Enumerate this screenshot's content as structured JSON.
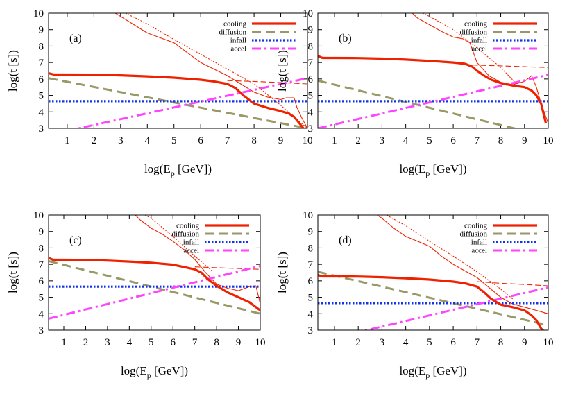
{
  "figure": {
    "ylabel": "log(t [s])",
    "xlabel_main": "log(E",
    "xlabel_sub": "p",
    "xlabel_tail": " [GeV])"
  },
  "colors": {
    "cooling": "#ee2200",
    "diffusion": "#999966",
    "infall": "#1133ee",
    "accel": "#ff44ff"
  },
  "chart_data": [
    {
      "type": "line",
      "panel_label": "(a)",
      "xlim": [
        0.3,
        10
      ],
      "ylim": [
        3,
        10
      ],
      "xticks": [
        "1",
        "2",
        "3",
        "4",
        "5",
        "6",
        "7",
        "8",
        "9",
        "10"
      ],
      "yticks": [
        "3",
        "4",
        "5",
        "6",
        "7",
        "8",
        "9",
        "10"
      ],
      "legend": [
        "cooling",
        "diffusion",
        "infall",
        "accel"
      ],
      "series": [
        {
          "name": "cooling",
          "role": "cooling_total",
          "x": [
            0.3,
            0.5,
            1,
            2,
            3,
            4,
            5,
            6,
            6.5,
            7,
            7.3,
            7.6,
            8,
            8.5,
            9,
            9.3,
            9.5,
            9.7,
            9.9
          ],
          "y": [
            6.35,
            6.27,
            6.27,
            6.26,
            6.22,
            6.16,
            6.08,
            5.95,
            5.85,
            5.7,
            5.45,
            5.0,
            4.5,
            4.25,
            4.05,
            3.9,
            3.7,
            3.3,
            2.9
          ]
        },
        {
          "name": "diffusion",
          "role": "diffusion",
          "x": [
            0.3,
            10
          ],
          "y": [
            6.05,
            3.0
          ]
        },
        {
          "name": "infall",
          "role": "infall",
          "x": [
            0.3,
            10
          ],
          "y": [
            4.65,
            4.65
          ]
        },
        {
          "name": "accel",
          "role": "accel",
          "x": [
            0.3,
            10
          ],
          "y": [
            2.6,
            6.05
          ]
        },
        {
          "name": "cooling component 1",
          "role": "cooling_thin",
          "x": [
            2.7,
            3,
            3.5,
            4,
            4.5,
            5,
            5.5,
            6,
            6.5,
            7,
            7.5,
            8,
            8.5,
            9,
            9.2,
            9.5,
            9.6,
            9.8,
            10
          ],
          "y": [
            10.1,
            9.8,
            9.3,
            8.8,
            8.5,
            8.2,
            7.6,
            7.0,
            6.6,
            6.2,
            5.7,
            5.2,
            4.9,
            4.75,
            4.85,
            4.85,
            4.3,
            3.6,
            3.0
          ]
        },
        {
          "name": "cooling component 2",
          "role": "cooling_dotted",
          "x": [
            3,
            4,
            5,
            6,
            7,
            8,
            9,
            10
          ],
          "y": [
            10.15,
            9.35,
            8.4,
            7.5,
            6.6,
            5.7,
            4.4,
            3.0
          ]
        },
        {
          "name": "cooling component 3",
          "role": "cooling_dashed",
          "x": [
            7,
            8,
            9,
            10
          ],
          "y": [
            5.9,
            5.85,
            5.78,
            5.7
          ]
        }
      ]
    },
    {
      "type": "line",
      "panel_label": "(b)",
      "xlim": [
        0.3,
        10
      ],
      "ylim": [
        3,
        10
      ],
      "xticks": [
        "1",
        "2",
        "3",
        "4",
        "5",
        "6",
        "7",
        "8",
        "9",
        "10"
      ],
      "yticks": [
        "3",
        "4",
        "5",
        "6",
        "7",
        "8",
        "9",
        "10"
      ],
      "legend": [
        "cooling",
        "diffusion",
        "infall",
        "accel"
      ],
      "series": [
        {
          "name": "cooling",
          "role": "cooling_total",
          "x": [
            0.3,
            0.5,
            1,
            2,
            3,
            4,
            5,
            6,
            6.5,
            6.8,
            7,
            7.3,
            7.6,
            8,
            8.5,
            9,
            9.3,
            9.5,
            9.7,
            9.9
          ],
          "y": [
            7.4,
            7.28,
            7.28,
            7.27,
            7.24,
            7.18,
            7.1,
            7.0,
            6.92,
            6.75,
            6.5,
            6.2,
            5.95,
            5.75,
            5.6,
            5.5,
            5.3,
            5.0,
            4.5,
            3.3
          ]
        },
        {
          "name": "diffusion",
          "role": "diffusion",
          "x": [
            0.3,
            10
          ],
          "y": [
            5.9,
            2.5
          ]
        },
        {
          "name": "infall",
          "role": "infall",
          "x": [
            0.3,
            10
          ],
          "y": [
            4.65,
            4.65
          ]
        },
        {
          "name": "accel",
          "role": "accel",
          "x": [
            0.3,
            10
          ],
          "y": [
            3.0,
            6.25
          ]
        },
        {
          "name": "cooling component 1",
          "role": "cooling_thin",
          "x": [
            4.2,
            4.5,
            5,
            5.5,
            6,
            6.4,
            6.7,
            7,
            7.5,
            8,
            8.5,
            9,
            9.3,
            9.5,
            9.7,
            10
          ],
          "y": [
            10.1,
            9.7,
            9.3,
            8.9,
            8.55,
            8.45,
            8.2,
            7.0,
            6.2,
            5.8,
            5.65,
            5.85,
            6.2,
            5.5,
            4.5,
            3.3
          ]
        },
        {
          "name": "cooling component 2",
          "role": "cooling_dotted",
          "x": [
            4.5,
            5,
            6,
            7,
            8,
            8.6
          ],
          "y": [
            10.15,
            9.8,
            9.0,
            7.9,
            6.7,
            5.8
          ]
        },
        {
          "name": "cooling component 3",
          "role": "cooling_dashed",
          "x": [
            6.8,
            8,
            9,
            10
          ],
          "y": [
            6.85,
            6.8,
            6.75,
            6.7
          ]
        }
      ]
    },
    {
      "type": "line",
      "panel_label": "(c)",
      "xlim": [
        0.3,
        10
      ],
      "ylim": [
        3,
        10
      ],
      "xticks": [
        "1",
        "2",
        "3",
        "4",
        "5",
        "6",
        "7",
        "8",
        "9",
        "10"
      ],
      "yticks": [
        "3",
        "4",
        "5",
        "6",
        "7",
        "8",
        "9",
        "10"
      ],
      "legend": [
        "cooling",
        "diffusion",
        "infall",
        "accel"
      ],
      "series": [
        {
          "name": "cooling",
          "role": "cooling_total",
          "x": [
            0.3,
            0.5,
            1,
            2,
            3,
            4,
            5,
            6,
            7,
            7.3,
            7.6,
            8,
            8.5,
            9,
            9.5,
            10
          ],
          "y": [
            7.4,
            7.28,
            7.28,
            7.27,
            7.23,
            7.17,
            7.1,
            6.98,
            6.7,
            6.5,
            6.1,
            5.7,
            5.3,
            5.0,
            4.7,
            4.2
          ]
        },
        {
          "name": "diffusion",
          "role": "diffusion",
          "x": [
            0.3,
            10
          ],
          "y": [
            7.2,
            4.0
          ]
        },
        {
          "name": "infall",
          "role": "infall",
          "x": [
            0.3,
            10
          ],
          "y": [
            5.65,
            5.65
          ]
        },
        {
          "name": "accel",
          "role": "accel",
          "x": [
            0.3,
            10
          ],
          "y": [
            3.7,
            6.9
          ]
        },
        {
          "name": "cooling component 1",
          "role": "cooling_thin",
          "x": [
            4.2,
            4.5,
            5,
            5.5,
            6,
            6.5,
            7,
            7.5,
            8,
            8.5,
            9,
            9.5,
            9.8,
            10
          ],
          "y": [
            10.1,
            9.7,
            9.2,
            8.85,
            8.4,
            7.9,
            7.3,
            6.5,
            5.8,
            5.55,
            5.4,
            5.65,
            5.7,
            4.6
          ]
        },
        {
          "name": "cooling component 2",
          "role": "cooling_dotted",
          "x": [
            4.5,
            5,
            6,
            7,
            7.8
          ],
          "y": [
            10.15,
            9.8,
            8.7,
            7.5,
            6.6
          ]
        },
        {
          "name": "cooling component 3",
          "role": "cooling_dashed",
          "x": [
            7,
            8,
            9,
            10
          ],
          "y": [
            6.85,
            6.8,
            6.75,
            6.7
          ]
        }
      ]
    },
    {
      "type": "line",
      "panel_label": "(d)",
      "xlim": [
        0.3,
        10
      ],
      "ylim": [
        3,
        10
      ],
      "xticks": [
        "1",
        "2",
        "3",
        "4",
        "5",
        "6",
        "7",
        "8",
        "9",
        "10"
      ],
      "yticks": [
        "3",
        "4",
        "5",
        "6",
        "7",
        "8",
        "9",
        "10"
      ],
      "legend": [
        "cooling",
        "diffusion",
        "infall",
        "accel"
      ],
      "series": [
        {
          "name": "cooling",
          "role": "cooling_total",
          "x": [
            0.3,
            0.5,
            1,
            2,
            3,
            4,
            5,
            6,
            6.5,
            7,
            7.3,
            7.6,
            8,
            8.5,
            9,
            9.3,
            9.5,
            9.7,
            9.9
          ],
          "y": [
            6.35,
            6.27,
            6.27,
            6.26,
            6.22,
            6.16,
            6.08,
            5.95,
            5.85,
            5.65,
            5.3,
            4.9,
            4.55,
            4.4,
            4.2,
            3.9,
            3.6,
            3.1,
            2.8
          ]
        },
        {
          "name": "diffusion",
          "role": "diffusion",
          "x": [
            0.3,
            10
          ],
          "y": [
            6.55,
            3.3
          ]
        },
        {
          "name": "infall",
          "role": "infall",
          "x": [
            0.3,
            10
          ],
          "y": [
            4.65,
            4.65
          ]
        },
        {
          "name": "accel",
          "role": "accel",
          "x": [
            0.3,
            10
          ],
          "y": [
            2.3,
            5.6
          ]
        },
        {
          "name": "cooling component 1",
          "role": "cooling_thin",
          "x": [
            2.7,
            3,
            3.5,
            4,
            4.5,
            5,
            5.5,
            6,
            6.5,
            7,
            7.5,
            8,
            8.5,
            9,
            9.5,
            10
          ],
          "y": [
            10.1,
            9.8,
            9.2,
            8.7,
            8.4,
            8.1,
            7.5,
            7.0,
            6.6,
            6.2,
            5.6,
            5.0,
            4.6,
            4.4,
            4.2,
            4.0
          ]
        },
        {
          "name": "cooling component 2",
          "role": "cooling_dotted",
          "x": [
            3,
            4,
            5,
            6,
            7,
            8,
            8.5
          ],
          "y": [
            10.15,
            9.35,
            8.4,
            7.5,
            6.55,
            5.5,
            4.9
          ]
        },
        {
          "name": "cooling component 3",
          "role": "cooling_dashed",
          "x": [
            7,
            8,
            9,
            10
          ],
          "y": [
            5.95,
            5.85,
            5.78,
            5.7
          ]
        }
      ]
    }
  ]
}
